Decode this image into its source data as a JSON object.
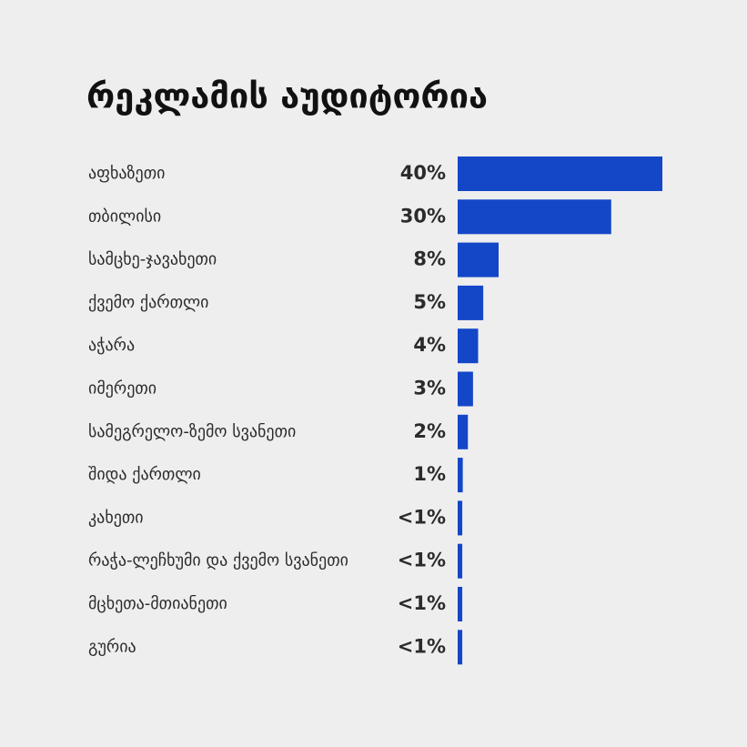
{
  "chart_data": {
    "type": "bar",
    "orientation": "horizontal",
    "title": "რეკლამის აუდიტორია",
    "categories": [
      "აფხაზეთი",
      "თბილისი",
      "სამცხე-ჯავახეთი",
      "ქვემო ქართლი",
      "აჭარა",
      "იმერეთი",
      "სამეგრელო-ზემო სვანეთი",
      "შიდა ქართლი",
      "კახეთი",
      "რაჭა-ლეჩხუმი და ქვემო სვანეთი",
      "მცხეთა-მთიანეთი",
      "გურია"
    ],
    "values": [
      40,
      30,
      8,
      5,
      4,
      3,
      2,
      1,
      0.9,
      0.9,
      0.9,
      0.9
    ],
    "value_labels": [
      "40%",
      "30%",
      "8%",
      "5%",
      "4%",
      "3%",
      "2%",
      "1%",
      "<1%",
      "<1%",
      "<1%",
      "<1%"
    ],
    "color": "#1446c8",
    "xlim": [
      0,
      40
    ]
  }
}
